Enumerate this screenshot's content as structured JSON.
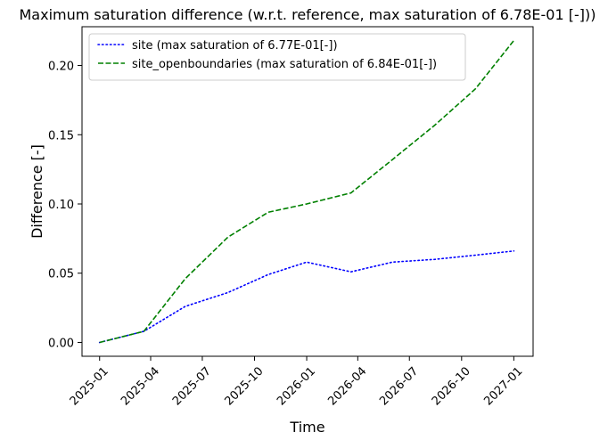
{
  "chart_data": {
    "type": "line",
    "title": "Maximum saturation difference (w.r.t. reference, max saturation of 6.78E-01 [-]))",
    "xlabel": "Time",
    "ylabel": "Difference [-]",
    "xlim": [
      "2024-12-01",
      "2027-02-04"
    ],
    "ylim": [
      -0.01,
      0.228
    ],
    "x_ticks": [
      "2025-01-01",
      "2025-04-01",
      "2025-07-01",
      "2025-10-01",
      "2026-01-01",
      "2026-04-01",
      "2026-07-01",
      "2026-10-01",
      "2027-01-01"
    ],
    "x_tick_labels": [
      "2025-01",
      "2025-04",
      "2025-07",
      "2025-10",
      "2026-01",
      "2026-04",
      "2026-07",
      "2026-10",
      "2027-01"
    ],
    "y_ticks": [
      0.0,
      0.05,
      0.1,
      0.15,
      0.2
    ],
    "y_tick_labels": [
      "0.00",
      "0.05",
      "0.10",
      "0.15",
      "0.20"
    ],
    "grid": false,
    "legend_position": "top-left",
    "series": [
      {
        "name": "site (max saturation of 6.77E-01[-])",
        "color": "#0000ff",
        "style": "dotted",
        "x": [
          "2025-01-01",
          "2025-03-20",
          "2025-06-01",
          "2025-08-15",
          "2025-10-25",
          "2026-01-01",
          "2026-03-20",
          "2026-06-01",
          "2026-08-15",
          "2026-10-25",
          "2027-01-01"
        ],
        "y": [
          0.0,
          0.008,
          0.026,
          0.036,
          0.049,
          0.058,
          0.051,
          0.058,
          0.06,
          0.063,
          0.066
        ]
      },
      {
        "name": "site_openboundaries (max saturation of 6.84E-01[-])",
        "color": "#008000",
        "style": "dashed",
        "x": [
          "2025-01-01",
          "2025-03-20",
          "2025-06-01",
          "2025-08-15",
          "2025-10-25",
          "2026-01-01",
          "2026-03-20",
          "2026-06-01",
          "2026-08-15",
          "2026-10-25",
          "2027-01-01"
        ],
        "y": [
          0.0,
          0.008,
          0.046,
          0.076,
          0.094,
          0.1,
          0.108,
          0.132,
          0.157,
          0.183,
          0.218
        ]
      }
    ]
  }
}
